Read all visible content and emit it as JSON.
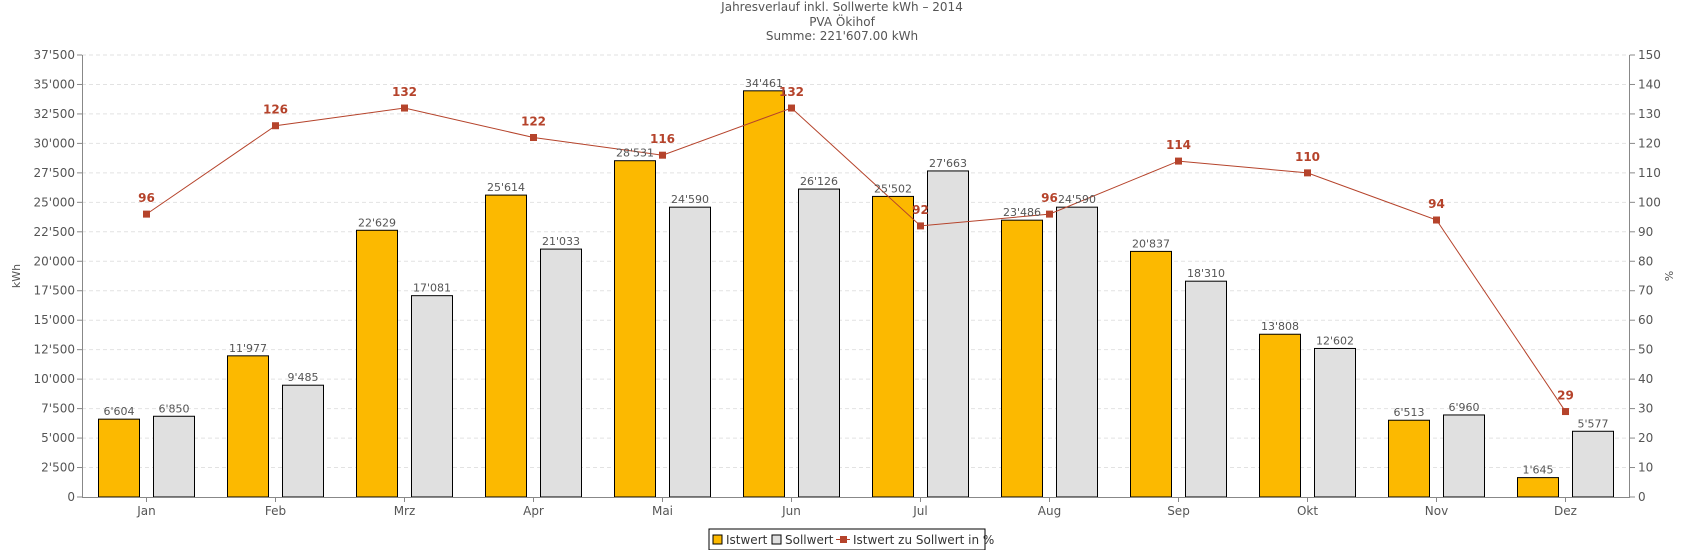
{
  "chart_data": {
    "type": "bar",
    "title": "Jahresverlauf inkl. Sollwerte kWh – 2014",
    "subtitle": "PVA Ökihof",
    "summary": "Summe: 221'607.00 kWh",
    "ylabel": "kWh",
    "y2label": "%",
    "ylim": [
      0,
      37500
    ],
    "y2lim": [
      0,
      150
    ],
    "yticks": [
      "0",
      "2'500",
      "5'000",
      "7'500",
      "10'000",
      "12'500",
      "15'000",
      "17'500",
      "20'000",
      "22'500",
      "25'000",
      "27'500",
      "30'000",
      "32'500",
      "35'000",
      "37'500"
    ],
    "y2ticks": [
      "0",
      "10",
      "20",
      "30",
      "40",
      "50",
      "60",
      "70",
      "80",
      "90",
      "100",
      "110",
      "120",
      "130",
      "140",
      "150"
    ],
    "grid": true,
    "legend_position": "bottom-center",
    "categories": [
      "Jan",
      "Feb",
      "Mrz",
      "Apr",
      "Mai",
      "Jun",
      "Jul",
      "Aug",
      "Sep",
      "Okt",
      "Nov",
      "Dez"
    ],
    "series": [
      {
        "name": "Istwert",
        "kind": "bar",
        "color": "#fcb900",
        "values": [
          6604,
          11977,
          22629,
          25614,
          28531,
          34461,
          25502,
          23486,
          20837,
          13808,
          6513,
          1645
        ],
        "labels": [
          "6'604",
          "11'977",
          "22'629",
          "25'614",
          "28'531",
          "34'461",
          "25'502",
          "23'486",
          "20'837",
          "13'808",
          "6'513",
          "1'645"
        ]
      },
      {
        "name": "Sollwert",
        "kind": "bar",
        "color": "#e0e0e0",
        "values": [
          6850,
          9485,
          17081,
          21033,
          24590,
          26126,
          27663,
          24590,
          18310,
          12602,
          6960,
          5577
        ],
        "labels": [
          "6'850",
          "9'485",
          "17'081",
          "21'033",
          "24'590",
          "26'126",
          "27'663",
          "24'590",
          "18'310",
          "12'602",
          "6'960",
          "5'577"
        ]
      },
      {
        "name": "Istwert zu Sollwert in %",
        "kind": "line",
        "axis": "right",
        "color": "#b5432b",
        "values": [
          96,
          126,
          132,
          122,
          116,
          132,
          92,
          96,
          114,
          110,
          94,
          29
        ],
        "labels": [
          "96",
          "126",
          "132",
          "122",
          "116",
          "132",
          "92",
          "96",
          "114",
          "110",
          "94",
          "29"
        ]
      }
    ]
  }
}
